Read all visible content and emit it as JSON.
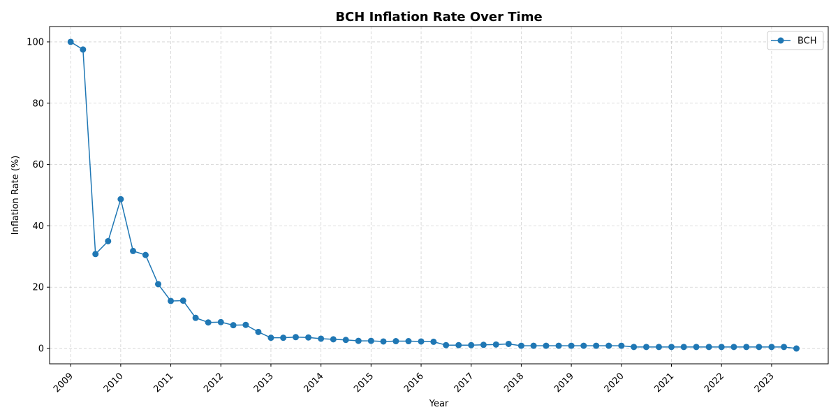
{
  "chart_data": {
    "type": "line",
    "title": "BCH Inflation Rate Over Time",
    "xlabel": "Year",
    "ylabel": "Inflation Rate (%)",
    "xlim": [
      "2008-07-31",
      "2024-02-18"
    ],
    "ylim": [
      -5,
      105
    ],
    "x_ticks": [
      "2009",
      "2010",
      "2011",
      "2012",
      "2013",
      "2014",
      "2015",
      "2016",
      "2017",
      "2018",
      "2019",
      "2020",
      "2021",
      "2022",
      "2023"
    ],
    "y_ticks": [
      0,
      20,
      40,
      60,
      80,
      100
    ],
    "grid": true,
    "legend_position": "top-right",
    "series": [
      {
        "name": "BCH",
        "color": "#1f77b4",
        "marker": "circle",
        "x": [
          "2009-01-01",
          "2009-04-01",
          "2009-07-01",
          "2009-10-01",
          "2010-01-01",
          "2010-04-01",
          "2010-07-01",
          "2010-10-01",
          "2011-01-01",
          "2011-04-01",
          "2011-07-01",
          "2011-10-01",
          "2012-01-01",
          "2012-04-01",
          "2012-07-01",
          "2012-10-01",
          "2013-01-01",
          "2013-04-01",
          "2013-07-01",
          "2013-10-01",
          "2014-01-01",
          "2014-04-01",
          "2014-07-01",
          "2014-10-01",
          "2015-01-01",
          "2015-04-01",
          "2015-07-01",
          "2015-10-01",
          "2016-01-01",
          "2016-04-01",
          "2016-07-01",
          "2016-10-01",
          "2017-01-01",
          "2017-04-01",
          "2017-07-01",
          "2017-10-01",
          "2018-01-01",
          "2018-04-01",
          "2018-07-01",
          "2018-10-01",
          "2019-01-01",
          "2019-04-01",
          "2019-07-01",
          "2019-10-01",
          "2020-01-01",
          "2020-04-01",
          "2020-07-01",
          "2020-10-01",
          "2021-01-01",
          "2021-04-01",
          "2021-07-01",
          "2021-10-01",
          "2022-01-01",
          "2022-04-01",
          "2022-07-01",
          "2022-10-01",
          "2023-01-01",
          "2023-04-01",
          "2023-07-01"
        ],
        "y": [
          100.0,
          97.5,
          30.8,
          35.0,
          48.7,
          31.8,
          30.5,
          21.0,
          15.5,
          15.6,
          10.0,
          8.5,
          8.6,
          7.6,
          7.7,
          5.4,
          3.5,
          3.5,
          3.7,
          3.6,
          3.2,
          3.0,
          2.8,
          2.5,
          2.5,
          2.3,
          2.4,
          2.4,
          2.3,
          2.2,
          1.1,
          1.1,
          1.1,
          1.2,
          1.3,
          1.5,
          0.9,
          0.9,
          0.9,
          0.9,
          0.9,
          0.9,
          0.9,
          0.9,
          0.9,
          0.5,
          0.5,
          0.5,
          0.5,
          0.5,
          0.5,
          0.5,
          0.5,
          0.5,
          0.5,
          0.5,
          0.5,
          0.5,
          0.0
        ]
      }
    ]
  }
}
